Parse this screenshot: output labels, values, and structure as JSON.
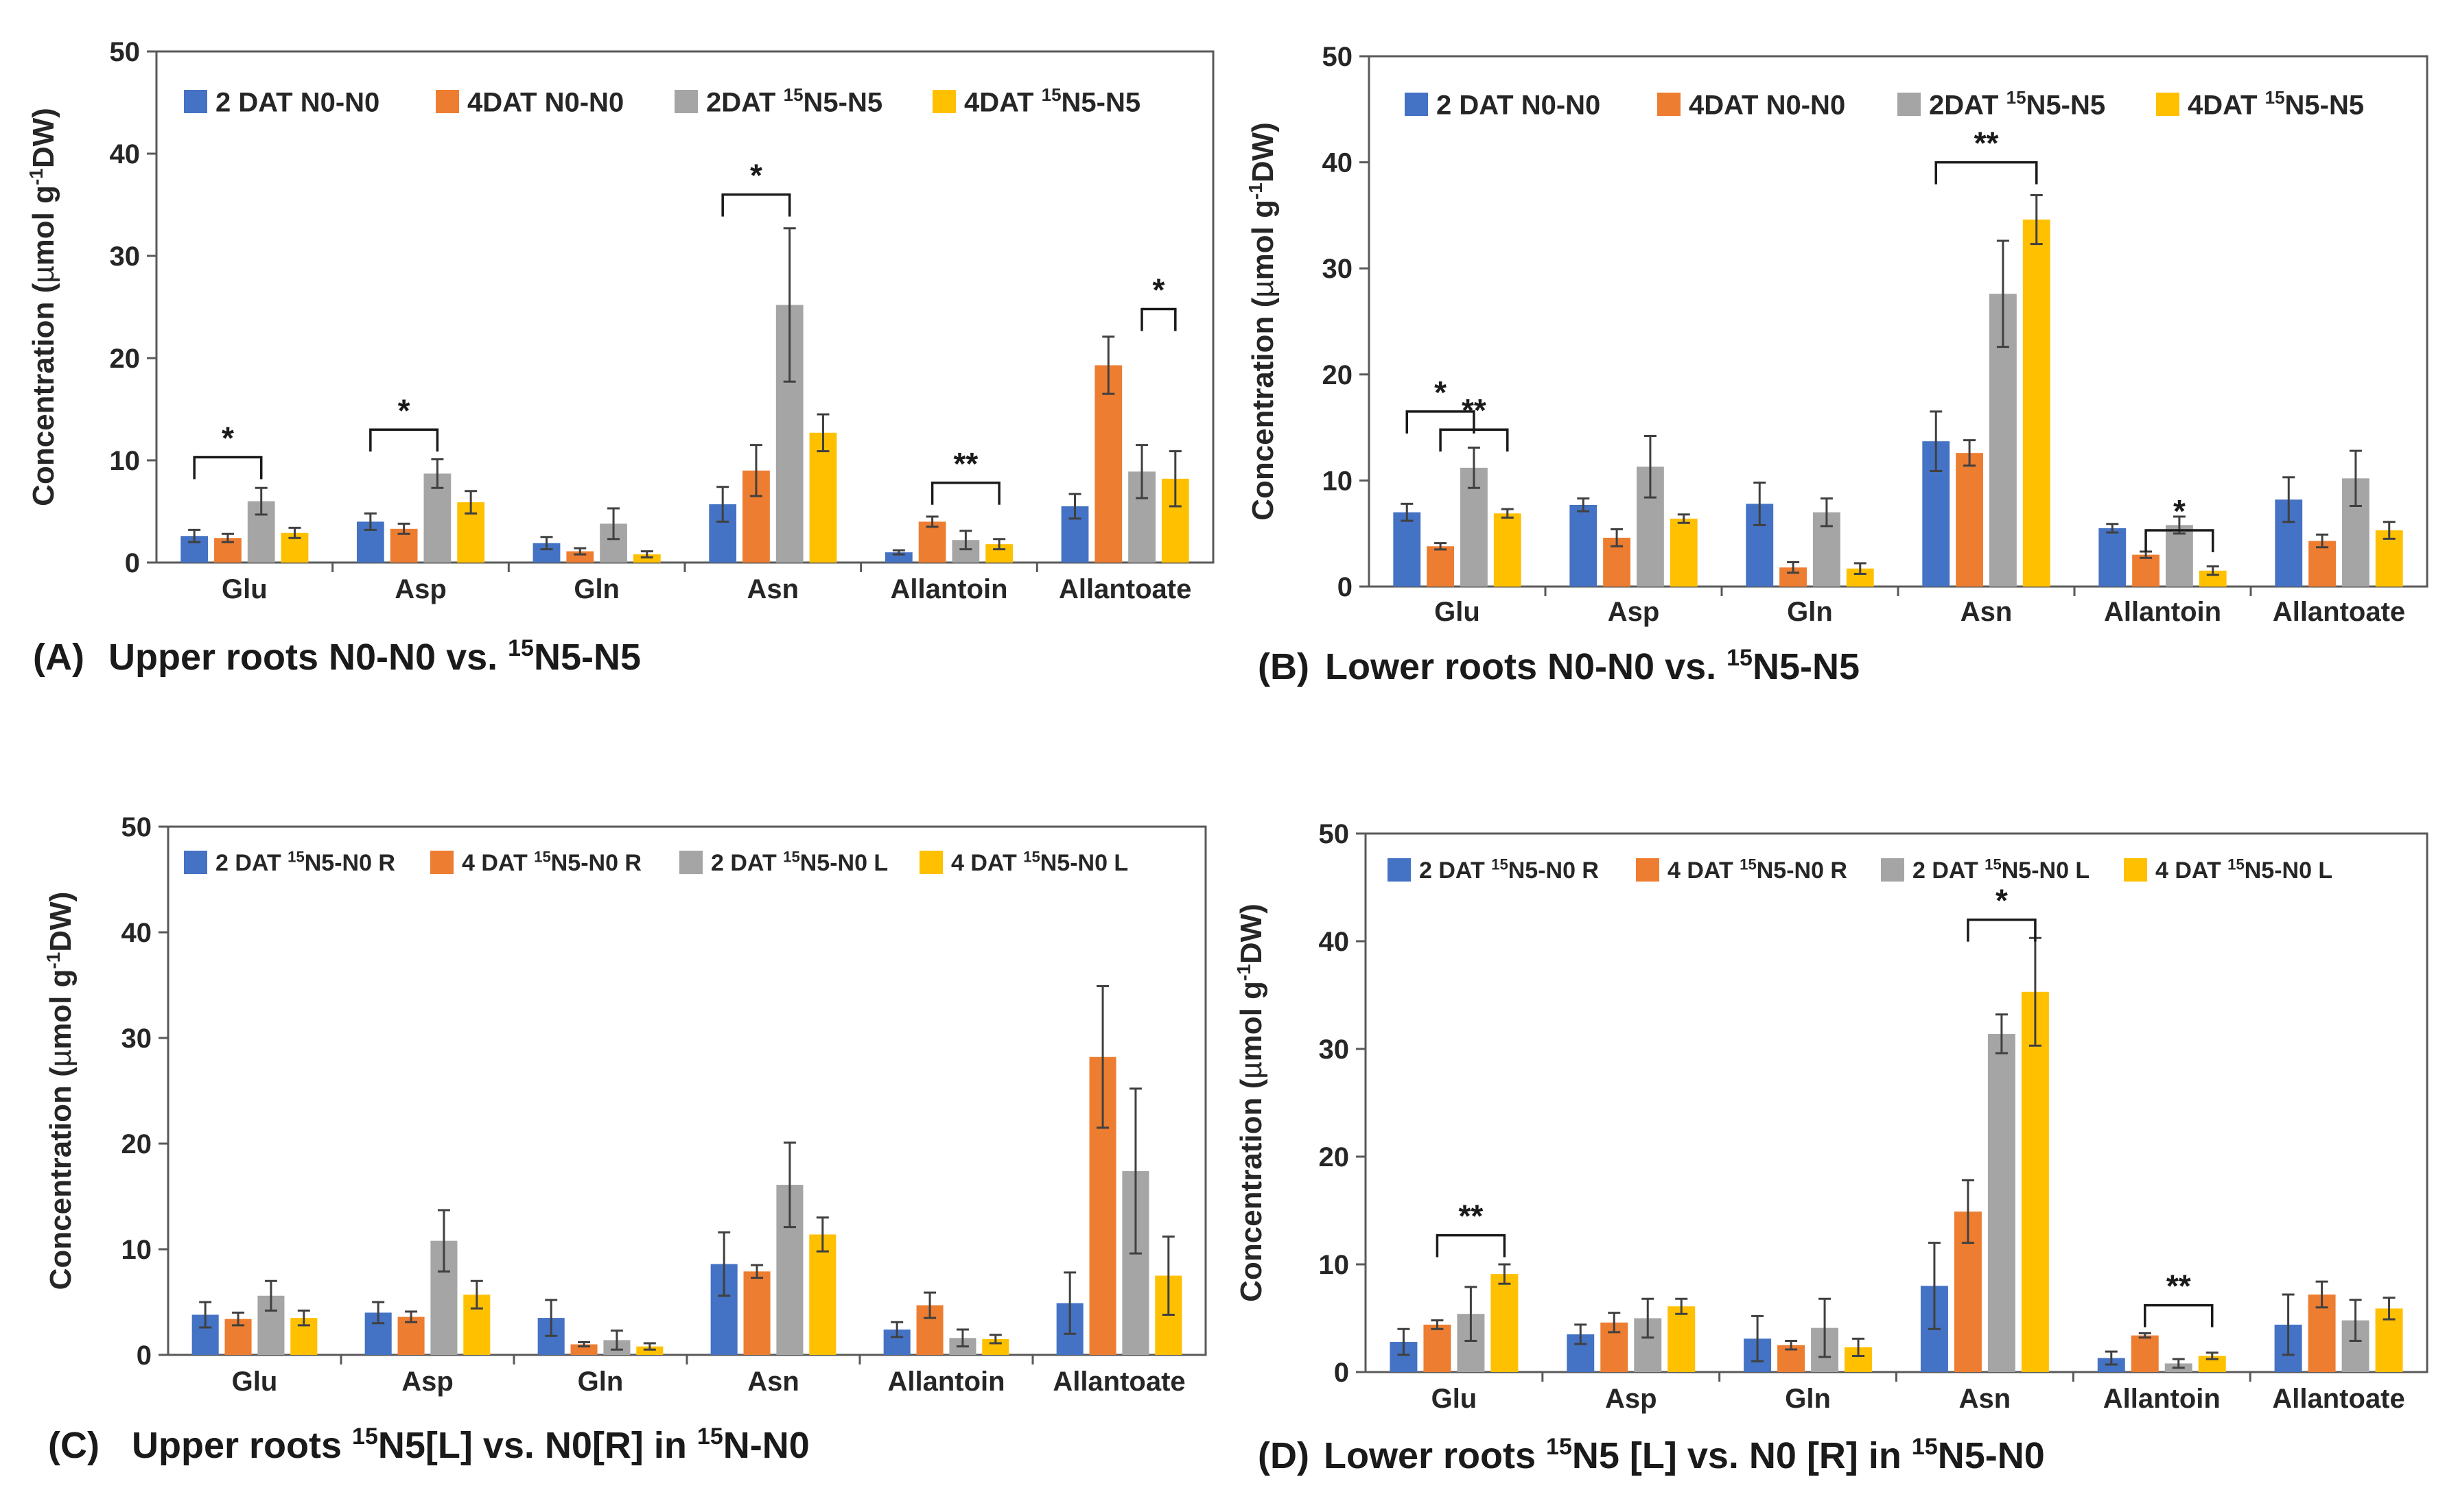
{
  "figure": {
    "colors": [
      "#4472C4",
      "#ED7D31",
      "#A5A5A5",
      "#FFC000"
    ]
  },
  "chart_data": [
    {
      "id": "A",
      "type": "bar",
      "panel_letter": "(A)",
      "panel_title": "Upper roots   N0-N0 vs. ",
      "panel_title_sup": "15",
      "panel_title_tail": "N5-N5",
      "ylabel_main": "Concentration (",
      "ylabel_mu": "µ",
      "ylabel_mol": "mol g",
      "ylabel_sup": "-1",
      "ylabel_tail": "DW)",
      "ylim": [
        0,
        50
      ],
      "yticks": [
        "0",
        "10",
        "20",
        "30",
        "40",
        "50"
      ],
      "categories": [
        "Glu",
        "Asp",
        "Gln",
        "Asn",
        "Allantoin",
        "Allantoate"
      ],
      "legend": [
        {
          "pre": "2 DAT N0-N0",
          "sup": "",
          "post": ""
        },
        {
          "pre": "4DAT N0-N0",
          "sup": "",
          "post": ""
        },
        {
          "pre": "2DAT ",
          "sup": "15",
          "post": "N5-N5"
        },
        {
          "pre": "4DAT ",
          "sup": "15",
          "post": "N5-N5"
        }
      ],
      "series": [
        {
          "name": "2 DAT N0-N0",
          "values": [
            2.6,
            4.0,
            1.9,
            5.7,
            1.0,
            5.5
          ],
          "errors": [
            0.6,
            0.8,
            0.6,
            1.7,
            0.2,
            1.2
          ]
        },
        {
          "name": "4DAT N0-N0",
          "values": [
            2.4,
            3.3,
            1.1,
            9.0,
            4.0,
            19.3
          ],
          "errors": [
            0.4,
            0.5,
            0.3,
            2.5,
            0.5,
            2.8
          ]
        },
        {
          "name": "2DAT 15N5-N5",
          "values": [
            6.0,
            8.7,
            3.8,
            25.2,
            2.2,
            8.9
          ],
          "errors": [
            1.3,
            1.4,
            1.5,
            7.5,
            0.9,
            2.6
          ]
        },
        {
          "name": "4DAT 15N5-N5",
          "values": [
            2.9,
            5.9,
            0.8,
            12.7,
            1.8,
            8.2
          ],
          "errors": [
            0.5,
            1.1,
            0.3,
            1.8,
            0.5,
            2.7
          ]
        }
      ],
      "significance": [
        {
          "category": 0,
          "from": 0,
          "to": 2,
          "y": 10.3,
          "label": "*"
        },
        {
          "category": 1,
          "from": 0,
          "to": 2,
          "y": 13.0,
          "label": "*"
        },
        {
          "category": 3,
          "from": 0,
          "to": 2,
          "y": 36.0,
          "label": "*"
        },
        {
          "category": 4,
          "from": 1,
          "to": 3,
          "y": 7.8,
          "label": "**"
        },
        {
          "category": 5,
          "from": 2,
          "to": 3,
          "y": 24.8,
          "label": "*"
        }
      ]
    },
    {
      "id": "B",
      "type": "bar",
      "panel_letter": "(B)",
      "panel_title": "Lower roots  N0-N0 vs. ",
      "panel_title_sup": "15",
      "panel_title_tail": "N5-N5",
      "ylabel_main": "Concentration (",
      "ylabel_mu": "µ",
      "ylabel_mol": "mol g",
      "ylabel_sup": "-1",
      "ylabel_tail": "DW)",
      "ylim": [
        0,
        50
      ],
      "yticks": [
        "0",
        "10",
        "20",
        "30",
        "40",
        "50"
      ],
      "categories": [
        "Glu",
        "Asp",
        "Gln",
        "Asn",
        "Allantoin",
        "Allantoate"
      ],
      "legend": [
        {
          "pre": "2 DAT N0-N0",
          "sup": "",
          "post": ""
        },
        {
          "pre": "4DAT N0-N0",
          "sup": "",
          "post": ""
        },
        {
          "pre": "2DAT ",
          "sup": "15",
          "post": "N5-N5"
        },
        {
          "pre": "4DAT ",
          "sup": "15",
          "post": "N5-N5"
        }
      ],
      "series": [
        {
          "name": "2 DAT N0-N0",
          "values": [
            7.0,
            7.7,
            7.8,
            13.7,
            5.5,
            8.2
          ],
          "errors": [
            0.8,
            0.6,
            2.0,
            2.8,
            0.4,
            2.1
          ]
        },
        {
          "name": "4DAT N0-N0",
          "values": [
            3.8,
            4.6,
            1.8,
            12.6,
            3.0,
            4.3
          ],
          "errors": [
            0.3,
            0.8,
            0.5,
            1.2,
            0.3,
            0.6
          ]
        },
        {
          "name": "2DAT 15N5-N5",
          "values": [
            11.2,
            11.3,
            7.0,
            27.6,
            5.8,
            10.2
          ],
          "errors": [
            1.9,
            2.9,
            1.3,
            5.0,
            0.8,
            2.6
          ]
        },
        {
          "name": "4DAT 15N5-N5",
          "values": [
            6.9,
            6.4,
            1.7,
            34.6,
            1.5,
            5.3
          ],
          "errors": [
            0.4,
            0.4,
            0.5,
            2.3,
            0.4,
            0.8
          ]
        }
      ],
      "significance": [
        {
          "category": 0,
          "from": 0,
          "to": 2,
          "y": 16.5,
          "label": "*"
        },
        {
          "category": 0,
          "from": 1,
          "to": 3,
          "y": 14.8,
          "label": "**"
        },
        {
          "category": 3,
          "from": 0,
          "to": 3,
          "y": 40.0,
          "label": "**"
        },
        {
          "category": 4,
          "from": 1,
          "to": 3,
          "y": 5.3,
          "label": "*"
        }
      ]
    },
    {
      "id": "C",
      "type": "bar",
      "panel_letter": "(C)",
      "panel_title": "Upper roots  ",
      "panel_title_sup": "15",
      "panel_title_tail": "N5[L] vs. N0[R] in ",
      "panel_title_sup2": "15",
      "panel_title_tail2": "N-N0",
      "ylabel_main": "Concentration (",
      "ylabel_mu": "µ",
      "ylabel_mol": "mol g",
      "ylabel_sup": "-1",
      "ylabel_tail": "DW)",
      "ylim": [
        0,
        50
      ],
      "yticks": [
        "0",
        "10",
        "20",
        "30",
        "40",
        "50"
      ],
      "categories": [
        "Glu",
        "Asp",
        "Gln",
        "Asn",
        "Allantoin",
        "Allantoate"
      ],
      "legend": [
        {
          "pre": "2 DAT ",
          "sup": "15",
          "post": "N5-N0  R"
        },
        {
          "pre": "4 DAT ",
          "sup": "15",
          "post": "N5-N0  R"
        },
        {
          "pre": "2 DAT ",
          "sup": "15",
          "post": "N5-N0  L"
        },
        {
          "pre": "4 DAT ",
          "sup": "15",
          "post": "N5-N0  L"
        }
      ],
      "series": [
        {
          "name": "2 DAT 15N5-N0 R",
          "values": [
            3.8,
            4.0,
            3.5,
            8.6,
            2.4,
            4.9
          ],
          "errors": [
            1.2,
            1.0,
            1.7,
            3.0,
            0.7,
            2.9
          ]
        },
        {
          "name": "4 DAT 15N5-N0 R",
          "values": [
            3.4,
            3.6,
            1.0,
            7.9,
            4.7,
            28.2
          ],
          "errors": [
            0.6,
            0.5,
            0.2,
            0.6,
            1.2,
            6.7
          ]
        },
        {
          "name": "2 DAT 15N5-N0 L",
          "values": [
            5.6,
            10.8,
            1.4,
            16.1,
            1.6,
            17.4
          ],
          "errors": [
            1.4,
            2.9,
            0.9,
            4.0,
            0.8,
            7.8
          ]
        },
        {
          "name": "4 DAT 15N5-N0 L",
          "values": [
            3.5,
            5.7,
            0.8,
            11.4,
            1.5,
            7.5
          ],
          "errors": [
            0.7,
            1.3,
            0.3,
            1.6,
            0.4,
            3.7
          ]
        }
      ],
      "significance": []
    },
    {
      "id": "D",
      "type": "bar",
      "panel_letter": "(D)",
      "panel_title": "Lower roots ",
      "panel_title_sup": "15",
      "panel_title_tail": "N5 [L] vs. N0 [R] in ",
      "panel_title_sup2": "15",
      "panel_title_tail2": "N5-N0",
      "ylabel_main": "Concentration (",
      "ylabel_mu": "µ",
      "ylabel_mol": "mol g",
      "ylabel_sup": "-1",
      "ylabel_tail": "DW)",
      "ylim": [
        0,
        50
      ],
      "yticks": [
        "0",
        "10",
        "20",
        "30",
        "40",
        "50"
      ],
      "categories": [
        "Glu",
        "Asp",
        "Gln",
        "Asn",
        "Allantoin",
        "Allantoate"
      ],
      "legend": [
        {
          "pre": "2 DAT ",
          "sup": "15",
          "post": "N5-N0  R"
        },
        {
          "pre": "4 DAT ",
          "sup": "15",
          "post": "N5-N0  R"
        },
        {
          "pre": "2 DAT ",
          "sup": "15",
          "post": "N5-N0  L"
        },
        {
          "pre": "4 DAT ",
          "sup": "15",
          "post": "N5-N0  L"
        }
      ],
      "series": [
        {
          "name": "2 DAT 15N5-N0 R",
          "values": [
            2.8,
            3.5,
            3.1,
            8.0,
            1.3,
            4.4
          ],
          "errors": [
            1.2,
            0.9,
            2.1,
            4.0,
            0.6,
            2.8
          ]
        },
        {
          "name": "4 DAT 15N5-N0 R",
          "values": [
            4.4,
            4.6,
            2.5,
            14.9,
            3.4,
            7.2
          ],
          "errors": [
            0.4,
            0.9,
            0.4,
            2.9,
            0.2,
            1.2
          ]
        },
        {
          "name": "2 DAT 15N5-N0 L",
          "values": [
            5.4,
            5.0,
            4.1,
            31.4,
            0.8,
            4.8
          ],
          "errors": [
            2.5,
            1.8,
            2.7,
            1.8,
            0.4,
            1.9
          ]
        },
        {
          "name": "4 DAT 15N5-N0 L",
          "values": [
            9.1,
            6.1,
            2.3,
            35.3,
            1.5,
            5.9
          ],
          "errors": [
            0.9,
            0.7,
            0.8,
            5.0,
            0.3,
            1.0
          ]
        }
      ],
      "significance": [
        {
          "category": 0,
          "from": 1,
          "to": 3,
          "y": 12.7,
          "label": "**"
        },
        {
          "category": 3,
          "from": 1,
          "to": 3,
          "y": 42.0,
          "label": "*"
        },
        {
          "category": 4,
          "from": 1,
          "to": 3,
          "y": 6.2,
          "label": "**"
        }
      ]
    }
  ]
}
